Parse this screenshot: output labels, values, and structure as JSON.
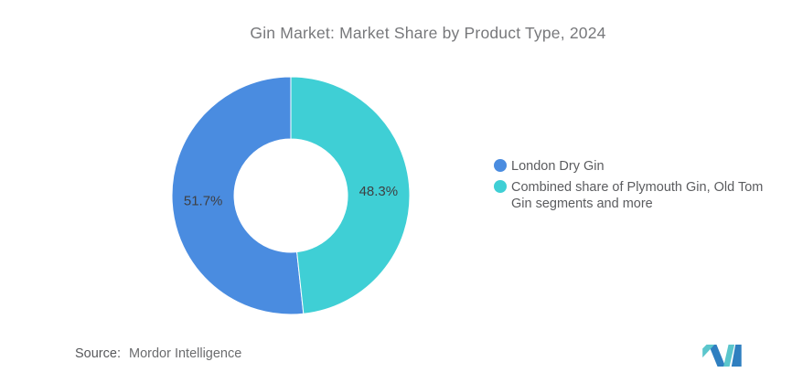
{
  "title": "Gin Market: Market Share by Product Type, 2024",
  "chart_data": {
    "type": "pie",
    "subtype": "donut",
    "title": "Gin Market: Market Share by Product Type, 2024",
    "start_angle_deg": 0,
    "direction": "series drawn counter-clockwise from 12 o'clock (blue left, teal right)",
    "inner_radius_ratio": 0.475,
    "legend_position": "right",
    "series": [
      {
        "name": "London Dry Gin",
        "value": 51.7,
        "label": "51.7%",
        "color": "#4A8CE0"
      },
      {
        "name": "Combined share of Plymouth Gin, Old Tom Gin segments and more",
        "value": 48.3,
        "label": "48.3%",
        "color": "#3FCFD5"
      }
    ]
  },
  "legend": {
    "items": [
      {
        "label": "London Dry Gin",
        "color": "#4A8CE0"
      },
      {
        "label": "Combined share of Plymouth Gin, Old Tom Gin segments and more",
        "color": "#3FCFD5"
      }
    ]
  },
  "source": {
    "label": "Source:",
    "value": "Mordor Intelligence"
  },
  "logo": {
    "name": "mordor-intelligence-logo",
    "teal": "#5BC6CC",
    "blue": "#2F7FC0"
  },
  "colors": {
    "background": "#FFFFFF",
    "title_text": "#77787B",
    "slice_label_text": "#3E3F42",
    "legend_text": "#5B5C5F",
    "source_text": "#6B6C6E"
  }
}
